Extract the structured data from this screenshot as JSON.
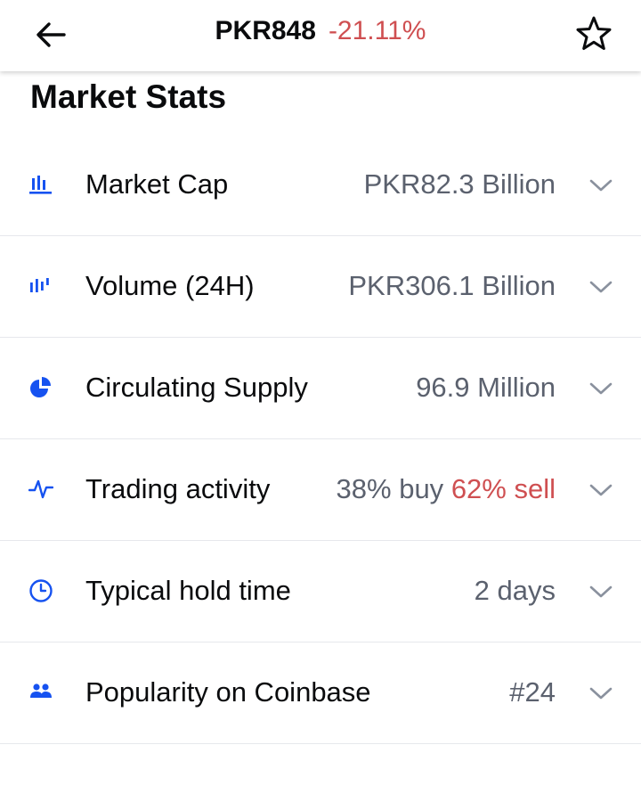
{
  "header": {
    "back_icon": "arrow-left-icon",
    "price": "PKR848",
    "change": "-21.11%",
    "change_color": "#cf4f51",
    "star_icon": "star-outline-icon"
  },
  "section": {
    "title": "Market Stats"
  },
  "stats": {
    "market_cap": {
      "icon": "bar-chart-icon",
      "label": "Market Cap",
      "value": "PKR82.3 Billion"
    },
    "volume": {
      "icon": "volume-bars-icon",
      "label": "Volume (24H)",
      "value": "PKR306.1 Billion"
    },
    "supply": {
      "icon": "pie-chart-icon",
      "label": "Circulating Supply",
      "value": "96.9 Million"
    },
    "trading": {
      "icon": "activity-icon",
      "label": "Trading activity",
      "buy": "38% buy",
      "sell": "62% sell"
    },
    "hold": {
      "icon": "clock-icon",
      "label": "Typical hold time",
      "value": "2 days"
    },
    "popularity": {
      "icon": "people-icon",
      "label": "Popularity on Coinbase",
      "value": "#24"
    }
  },
  "colors": {
    "accent": "#1652f0",
    "negative": "#cf4f51",
    "muted": "#5b616e"
  }
}
